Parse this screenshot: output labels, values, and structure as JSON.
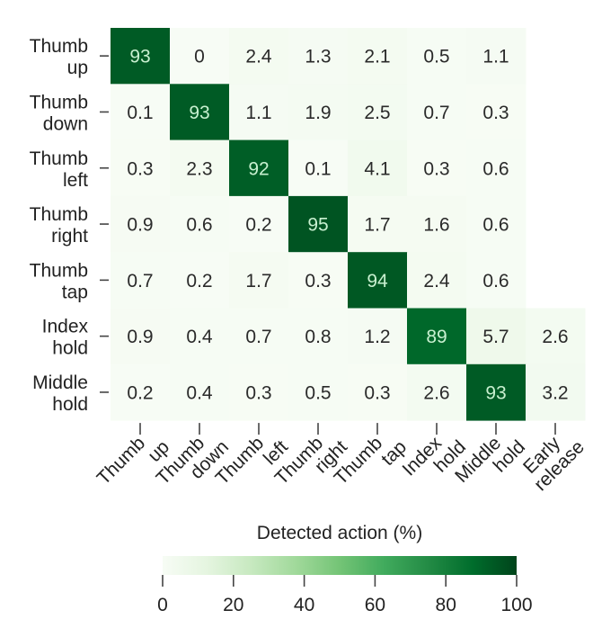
{
  "chart_data": {
    "type": "heatmap",
    "title": "",
    "xlabel": "Detected action (%)",
    "ylabel": "",
    "row_labels": [
      [
        "Thumb",
        "up"
      ],
      [
        "Thumb",
        "down"
      ],
      [
        "Thumb",
        "left"
      ],
      [
        "Thumb",
        "right"
      ],
      [
        "Thumb",
        "tap"
      ],
      [
        "Index",
        "hold"
      ],
      [
        "Middle",
        "hold"
      ]
    ],
    "col_labels": [
      [
        "Thumb",
        "up"
      ],
      [
        "Thumb",
        "down"
      ],
      [
        "Thumb",
        "left"
      ],
      [
        "Thumb",
        "right"
      ],
      [
        "Thumb",
        "tap"
      ],
      [
        "Index",
        "hold"
      ],
      [
        "Middle",
        "hold"
      ],
      [
        "Early",
        "release"
      ]
    ],
    "values": [
      [
        93,
        0,
        2.4,
        1.3,
        2.1,
        0.5,
        1.1,
        null
      ],
      [
        0.1,
        93,
        1.1,
        1.9,
        2.5,
        0.7,
        0.3,
        null
      ],
      [
        0.3,
        2.3,
        92,
        0.1,
        4.1,
        0.3,
        0.6,
        null
      ],
      [
        0.9,
        0.6,
        0.2,
        95,
        1.7,
        1.6,
        0.6,
        null
      ],
      [
        0.7,
        0.2,
        1.7,
        0.3,
        94,
        2.4,
        0.6,
        null
      ],
      [
        0.9,
        0.4,
        0.7,
        0.8,
        1.2,
        89,
        5.7,
        2.6
      ],
      [
        0.2,
        0.4,
        0.3,
        0.5,
        0.3,
        2.6,
        93,
        3.2
      ]
    ],
    "value_labels": [
      [
        "93",
        "0",
        "2.4",
        "1.3",
        "2.1",
        "0.5",
        "1.1",
        null
      ],
      [
        "0.1",
        "93",
        "1.1",
        "1.9",
        "2.5",
        "0.7",
        "0.3",
        null
      ],
      [
        "0.3",
        "2.3",
        "92",
        "0.1",
        "4.1",
        "0.3",
        "0.6",
        null
      ],
      [
        "0.9",
        "0.6",
        "0.2",
        "95",
        "1.7",
        "1.6",
        "0.6",
        null
      ],
      [
        "0.7",
        "0.2",
        "1.7",
        "0.3",
        "94",
        "2.4",
        "0.6",
        null
      ],
      [
        "0.9",
        "0.4",
        "0.7",
        "0.8",
        "1.2",
        "89",
        "5.7",
        "2.6"
      ],
      [
        "0.2",
        "0.4",
        "0.3",
        "0.5",
        "0.3",
        "2.6",
        "93",
        "3.2"
      ]
    ],
    "colorbar": {
      "range": [
        0,
        100
      ],
      "ticks": [
        "0",
        "20",
        "40",
        "60",
        "80",
        "100"
      ],
      "tick_values": [
        0,
        20,
        40,
        60,
        80,
        100
      ],
      "placement": "bottom",
      "colormap": "Greens",
      "colors": [
        "#f7fcf5",
        "#e5f5e0",
        "#c7e9c0",
        "#a1d99b",
        "#74c476",
        "#41ab5d",
        "#238b45",
        "#006d2c",
        "#00441b"
      ]
    },
    "text_color_dark": "#2a2a2a",
    "text_color_light": "#c8f0d0"
  }
}
